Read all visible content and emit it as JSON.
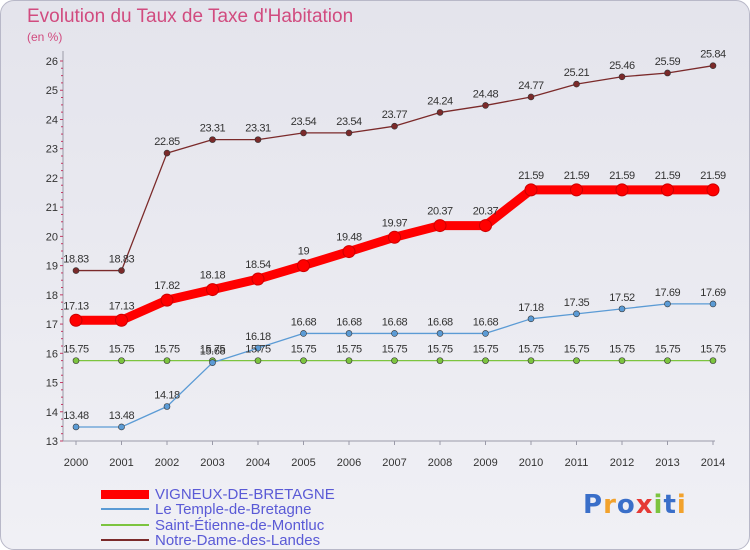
{
  "header": {
    "title": "Evolution du Taux de Taxe d'Habitation",
    "unit": "(en %)"
  },
  "chart_data": {
    "type": "line",
    "x": [
      "2000",
      "2001",
      "2002",
      "2003",
      "2004",
      "2005",
      "2006",
      "2007",
      "2008",
      "2009",
      "2010",
      "2011",
      "2012",
      "2013",
      "2014"
    ],
    "y_ticks": [
      13,
      14,
      15,
      16,
      17,
      18,
      19,
      20,
      21,
      22,
      23,
      24,
      25,
      26
    ],
    "ylim": [
      13,
      26
    ],
    "grid": false,
    "series": [
      {
        "name": "VIGNEUX-DE-BRETAGNE",
        "color": "#ff0000",
        "labels": [
          "17.13",
          "17.13",
          "17.82",
          "18.18",
          "18.54",
          "19",
          "19.48",
          "19.97",
          "20.37",
          "20.37",
          "21.59",
          "21.59",
          "21.59",
          "21.59",
          "21.59"
        ],
        "values": [
          17.13,
          17.13,
          17.82,
          18.18,
          18.54,
          19,
          19.48,
          19.97,
          20.37,
          20.37,
          21.59,
          21.59,
          21.59,
          21.59,
          21.59
        ]
      },
      {
        "name": "Le Temple-de-Bretagne",
        "color": "#5b9bd5",
        "labels": [
          "13.48",
          "13.48",
          "14.18",
          "15.68",
          "16.18",
          "16.68",
          "16.68",
          "16.68",
          "16.68",
          "16.68",
          "17.18",
          "17.35",
          "17.52",
          "17.69",
          "17.69"
        ],
        "values": [
          13.48,
          13.48,
          14.18,
          15.68,
          16.18,
          16.68,
          16.68,
          16.68,
          16.68,
          16.68,
          17.18,
          17.35,
          17.52,
          17.69,
          17.69
        ]
      },
      {
        "name": "Saint-Étienne-de-Montluc",
        "color": "#7cc43f",
        "labels": [
          "15.75",
          "15.75",
          "15.75",
          "15.75",
          "15.75",
          "15.75",
          "15.75",
          "15.75",
          "15.75",
          "15.75",
          "15.75",
          "15.75",
          "15.75",
          "15.75",
          "15.75"
        ],
        "values": [
          15.75,
          15.75,
          15.75,
          15.75,
          15.75,
          15.75,
          15.75,
          15.75,
          15.75,
          15.75,
          15.75,
          15.75,
          15.75,
          15.75,
          15.75
        ]
      },
      {
        "name": "Notre-Dame-des-Landes",
        "color": "#7b2a2a",
        "labels": [
          "18.83",
          "18.83",
          "22.85",
          "23.31",
          "23.31",
          "23.54",
          "23.54",
          "23.77",
          "24.24",
          "24.48",
          "24.77",
          "25.21",
          "25.46",
          "25.59",
          "25.84"
        ],
        "values": [
          18.83,
          18.83,
          22.85,
          23.31,
          23.31,
          23.54,
          23.54,
          23.77,
          24.24,
          24.48,
          24.77,
          25.21,
          25.46,
          25.59,
          25.84
        ]
      }
    ]
  },
  "legend": {
    "items": [
      {
        "label": "VIGNEUX-DE-BRETAGNE"
      },
      {
        "label": "Le Temple-de-Bretagne"
      },
      {
        "label": "Saint-Étienne-de-Montluc"
      },
      {
        "label": "Notre-Dame-des-Landes"
      }
    ]
  },
  "logo": {
    "text": "Proxiti",
    "colors": [
      "#3a6fc9",
      "#f2a22c",
      "#3a6fc9",
      "#e53935",
      "#7cc43f",
      "#3a6fc9",
      "#f2a22c"
    ]
  }
}
